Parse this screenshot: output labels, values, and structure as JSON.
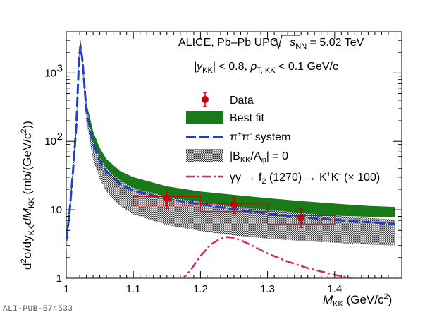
{
  "chart_data": {
    "type": "line",
    "title_lines": [
      "ALICE, Pb–Pb UPC, √s",
      "|y",
      "| < 0.8, p",
      " < 0.1 GeV/c"
    ],
    "header": {
      "experiment": "ALICE, Pb–Pb UPC, ",
      "sqrt": "s",
      "sqrt_sub": "NN",
      "energy": " = 5.02 TeV",
      "cut_y_pre": "|y",
      "cut_y_sub": "KK",
      "cut_y_post": "| < 0.8, ",
      "cut_pt_pre": "p",
      "cut_pt_sub": "T, KK",
      "cut_pt_post": " < 0.1 GeV/c"
    },
    "xlabel": {
      "main": "M",
      "sub": "KK",
      "units": " (GeV/c",
      "sup": "2",
      "close": ")"
    },
    "ylabel": {
      "text": "d²σ/dy_KK dM_KK (mb/(GeV/c²))",
      "p1": "d",
      "p1sup": "2",
      "p2": "σ/dy",
      "p2sub": "KK",
      "p3": "dM",
      "p3sub": "KK",
      "p4": " (mb/(GeV/c",
      "p4sup": "2",
      "p5": "))"
    },
    "xlim": [
      1.0,
      1.5
    ],
    "ylim": [
      1,
      4000
    ],
    "yscale": "log",
    "x_ticks": [
      "1",
      "1.1",
      "1.2",
      "1.3",
      "1.4"
    ],
    "x_tick_values": [
      1.0,
      1.1,
      1.2,
      1.3,
      1.4
    ],
    "y_ticks": [
      "1",
      "10",
      "10",
      "10"
    ],
    "y_tick_values": [
      1,
      10,
      100,
      1000
    ],
    "y_tick_exponents": [
      "",
      "",
      "2",
      "3"
    ],
    "legend_position": "right",
    "legend": [
      {
        "label": "Data",
        "style": "marker",
        "color": "#cc0000"
      },
      {
        "label": "Best fit",
        "style": "band",
        "color": "#1a7a1a"
      },
      {
        "label": "π⁺π⁻ system",
        "style": "dashed",
        "color": "#1f3fd1"
      },
      {
        "label": "|B_KK/A_φ| = 0",
        "style": "hatched",
        "color": "#222222"
      },
      {
        "label": "γγ → f₂ (1270) → K⁺K⁻ (× 100)",
        "style": "dashdot",
        "color": "#d6246e"
      }
    ],
    "legend_text": {
      "data": "Data",
      "best_fit": "Best fit",
      "pipi_pre": "π",
      "pipi_sup1": "+",
      "pipi_mid": "π",
      "pipi_sup2": "-",
      "pipi_post": " system",
      "b_pre": "|B",
      "b_sub": "KK",
      "b_mid": "/A",
      "b_sub2": "φ",
      "b_post": "| = 0",
      "gg_pre": "γγ → f",
      "gg_sub": "2",
      "gg_mid": " (1270) → K",
      "gg_sup1": "+",
      "gg_k": "K",
      "gg_sup2": "-",
      "gg_post": " (× 100)"
    },
    "series": [
      {
        "name": "Data",
        "x": [
          1.15,
          1.25,
          1.35
        ],
        "y": [
          14.5,
          11.8,
          7.6
        ],
        "y_err_low": [
          4.0,
          3.0,
          2.1
        ],
        "y_err_high": [
          4.5,
          3.2,
          2.6
        ],
        "x_halfwidth": [
          0.05,
          0.05,
          0.05
        ],
        "sys_low": [
          11.7,
          9.4,
          6.2
        ],
        "sys_high": [
          15.6,
          12.4,
          8.2
        ]
      },
      {
        "name": "Best fit band",
        "x": [
          1.0,
          1.005,
          1.01,
          1.015,
          1.019,
          1.021,
          1.024,
          1.03,
          1.04,
          1.05,
          1.06,
          1.08,
          1.1,
          1.15,
          1.2,
          1.25,
          1.3,
          1.35,
          1.4,
          1.45,
          1.49
        ],
        "y_low": [
          3.0,
          8.0,
          30,
          150,
          1400,
          2500,
          1500,
          260,
          85,
          45,
          32,
          22,
          18,
          14.5,
          12.0,
          10.5,
          9.2,
          8.6,
          8.2,
          7.9,
          7.8
        ],
        "y_high": [
          4.5,
          12,
          45,
          210,
          2000,
          3000,
          2000,
          370,
          140,
          80,
          55,
          37,
          30,
          22,
          18.5,
          16.5,
          14.8,
          13.4,
          12.3,
          11.4,
          11.0
        ]
      },
      {
        "name": "π⁺π⁻ system",
        "x": [
          1.0,
          1.005,
          1.01,
          1.015,
          1.019,
          1.021,
          1.024,
          1.03,
          1.04,
          1.05,
          1.06,
          1.08,
          1.1,
          1.15,
          1.2,
          1.25,
          1.3,
          1.35,
          1.4,
          1.45,
          1.49
        ],
        "y": [
          3.5,
          9.5,
          36,
          170,
          1600,
          2500,
          1600,
          280,
          95,
          52,
          36,
          24,
          19,
          14.5,
          12.0,
          10.2,
          8.8,
          7.8,
          7.1,
          6.6,
          6.2
        ]
      },
      {
        "name": "|B_KK/A_φ| = 0",
        "x": [
          1.0,
          1.005,
          1.01,
          1.015,
          1.019,
          1.021,
          1.024,
          1.03,
          1.04,
          1.05,
          1.06,
          1.08,
          1.1,
          1.15,
          1.2,
          1.25,
          1.3,
          1.35,
          1.4,
          1.45,
          1.49
        ],
        "y_low": [
          2.5,
          7,
          26,
          125,
          1200,
          2200,
          1200,
          190,
          55,
          28,
          18.5,
          11.5,
          8.6,
          6.0,
          4.9,
          4.2,
          3.8,
          3.5,
          3.3,
          3.1,
          3.0
        ],
        "y_high": [
          4.2,
          11,
          42,
          200,
          2000,
          3200,
          2000,
          330,
          100,
          58,
          40,
          27,
          21,
          15.5,
          13.0,
          11.2,
          10.0,
          9.0,
          8.2,
          7.6,
          7.2
        ]
      },
      {
        "name": "γγ → f₂ (1270) → K⁺K⁻ (× 100)",
        "x": [
          1.17,
          1.185,
          1.2,
          1.215,
          1.23,
          1.24,
          1.25,
          1.26,
          1.28,
          1.3,
          1.33,
          1.36,
          1.4,
          1.43
        ],
        "y": [
          0.9,
          1.3,
          2.1,
          3.1,
          3.8,
          4.0,
          3.9,
          3.6,
          2.9,
          2.3,
          1.75,
          1.4,
          1.12,
          0.98
        ]
      }
    ],
    "grid": false
  },
  "footer": "ALI-PUB-574533",
  "colors": {
    "data": "#cc0000",
    "fit": "#1a7a1a",
    "pipi": "#1f3fd1",
    "hatch": "#222222",
    "f2": "#d6246e"
  }
}
